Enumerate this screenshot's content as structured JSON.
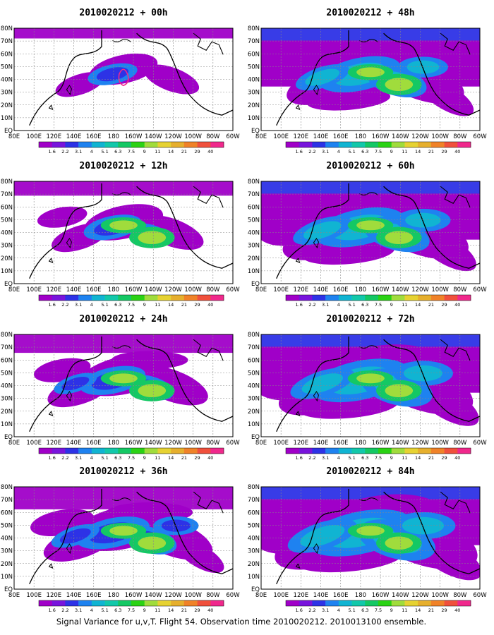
{
  "panels": [
    {
      "title": "2010020212 + 00h",
      "level": 0
    },
    {
      "title": "2010020212 + 48h",
      "level": 4
    },
    {
      "title": "2010020212 + 12h",
      "level": 1
    },
    {
      "title": "2010020212 + 60h",
      "level": 5
    },
    {
      "title": "2010020212 + 24h",
      "level": 2
    },
    {
      "title": "2010020212 + 72h",
      "level": 6
    },
    {
      "title": "2010020212 + 36h",
      "level": 3
    },
    {
      "title": "2010020212 + 84h",
      "level": 7
    }
  ],
  "axes": {
    "lon_ticks": [
      "80E",
      "100E",
      "120E",
      "140E",
      "160E",
      "180",
      "160W",
      "140W",
      "120W",
      "100W",
      "80W",
      "60W"
    ],
    "lat_ticks": [
      "80N",
      "70N",
      "60N",
      "50N",
      "40N",
      "30N",
      "20N",
      "10N",
      "EQ"
    ]
  },
  "colorbar": {
    "labels": [
      "1.6",
      "2.2",
      "3.1",
      "4",
      "5.1",
      "6.3",
      "7.5",
      "9",
      "11",
      "14",
      "21",
      "29",
      "40"
    ],
    "colors": [
      "#a000c8",
      "#7814dc",
      "#2d32e6",
      "#1e82f0",
      "#10b4d2",
      "#12c8aa",
      "#14c864",
      "#2ad214",
      "#a0dc3c",
      "#e6d232",
      "#e6af2d",
      "#f08228",
      "#f0503c",
      "#f0288c"
    ]
  },
  "caption": "Signal Variance for u,v,T. Flight 54. Observation time 2010020212. 2010013100 ensemble."
}
